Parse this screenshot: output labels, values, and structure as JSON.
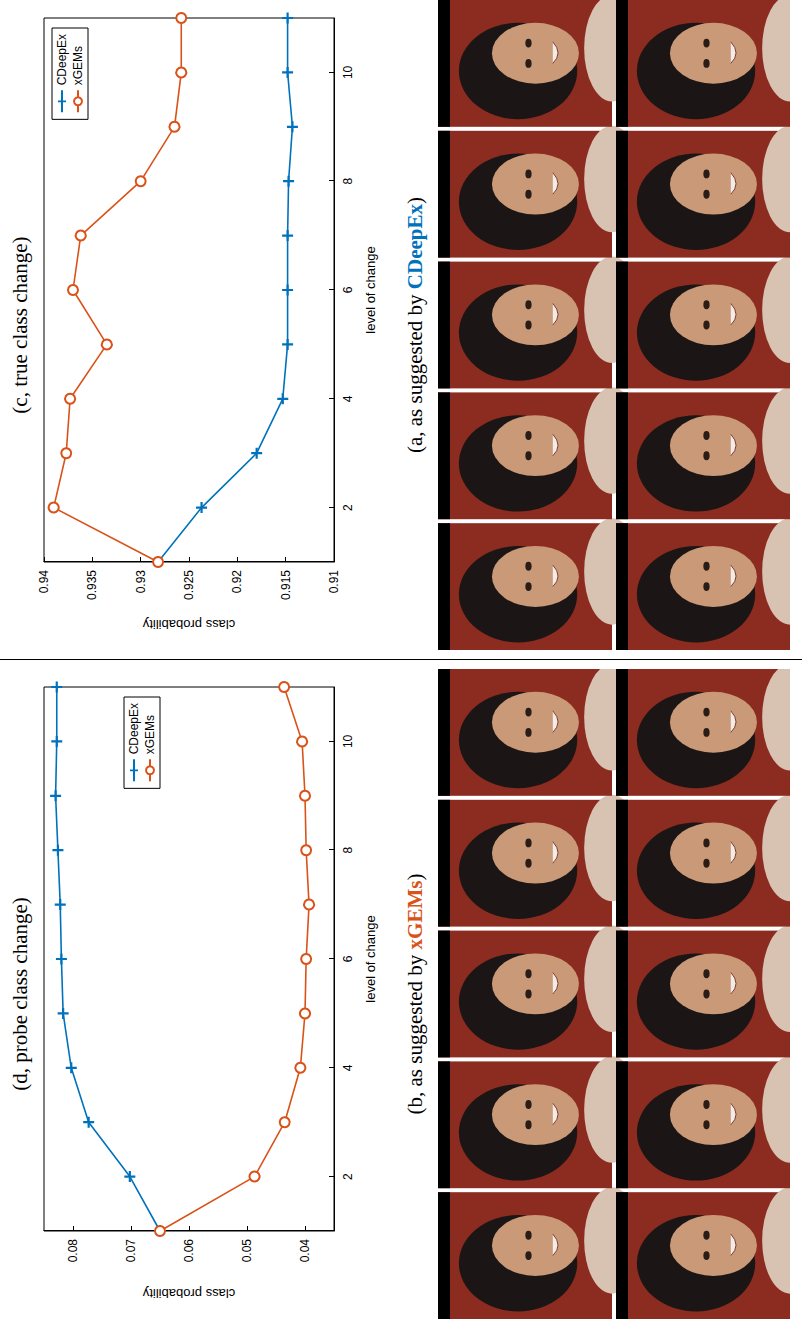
{
  "chart_data": [
    {
      "type": "line",
      "title": "(c, true class change)",
      "x_label": "level of change",
      "y_label": "class probability",
      "x": [
        1,
        2,
        3,
        4,
        5,
        6,
        7,
        8,
        9,
        10,
        11
      ],
      "xlim": [
        1,
        11
      ],
      "xticks": [
        2,
        4,
        6,
        8,
        10
      ],
      "ylim": [
        0.91,
        0.94
      ],
      "yticks": [
        0.91,
        0.915,
        0.92,
        0.925,
        0.93,
        0.935,
        0.94
      ],
      "grid": false,
      "legend": "upper right",
      "series": [
        {
          "name": "CDeepEx",
          "color": "#0072bd",
          "marker": "plus",
          "line_style": "solid",
          "values": [
            0.9282,
            0.9237,
            0.918,
            0.9153,
            0.9148,
            0.9148,
            0.9148,
            0.9147,
            0.9143,
            0.9148,
            0.9148
          ]
        },
        {
          "name": "xGEMs",
          "color": "#d95319",
          "marker": "circle",
          "line_style": "solid",
          "values": [
            0.9282,
            0.939,
            0.9377,
            0.9373,
            0.9335,
            0.937,
            0.9362,
            0.93,
            0.9265,
            0.9258,
            0.9258
          ]
        }
      ]
    },
    {
      "type": "line",
      "title": "(d, probe class change)",
      "x_label": "level of change",
      "y_label": "class probability",
      "x": [
        1,
        2,
        3,
        4,
        5,
        6,
        7,
        8,
        9,
        10,
        11
      ],
      "xlim": [
        1,
        11
      ],
      "xticks": [
        2,
        4,
        6,
        8,
        10
      ],
      "ylim": [
        0.035,
        0.085
      ],
      "yticks": [
        0.04,
        0.05,
        0.06,
        0.07,
        0.08
      ],
      "grid": false,
      "legend": "right",
      "series": [
        {
          "name": "CDeepEx",
          "color": "#0072bd",
          "marker": "plus",
          "line_style": "solid",
          "values": [
            0.065,
            0.0702,
            0.0773,
            0.0803,
            0.0817,
            0.082,
            0.0822,
            0.0826,
            0.083,
            0.0828,
            0.0828
          ]
        },
        {
          "name": "xGEMs",
          "color": "#d95319",
          "marker": "circle",
          "line_style": "solid",
          "values": [
            0.065,
            0.0487,
            0.0435,
            0.0408,
            0.04,
            0.0398,
            0.0393,
            0.0398,
            0.04,
            0.0405,
            0.0436
          ]
        }
      ]
    }
  ],
  "panels": [
    {
      "title": "(a, as suggested by CDeepEx)",
      "highlight": "CDeepEx",
      "highlight_color": "#0072bd"
    },
    {
      "title": "(b, as suggested by xGEMs)",
      "highlight": "xGEMs",
      "highlight_color": "#d95319"
    }
  ]
}
